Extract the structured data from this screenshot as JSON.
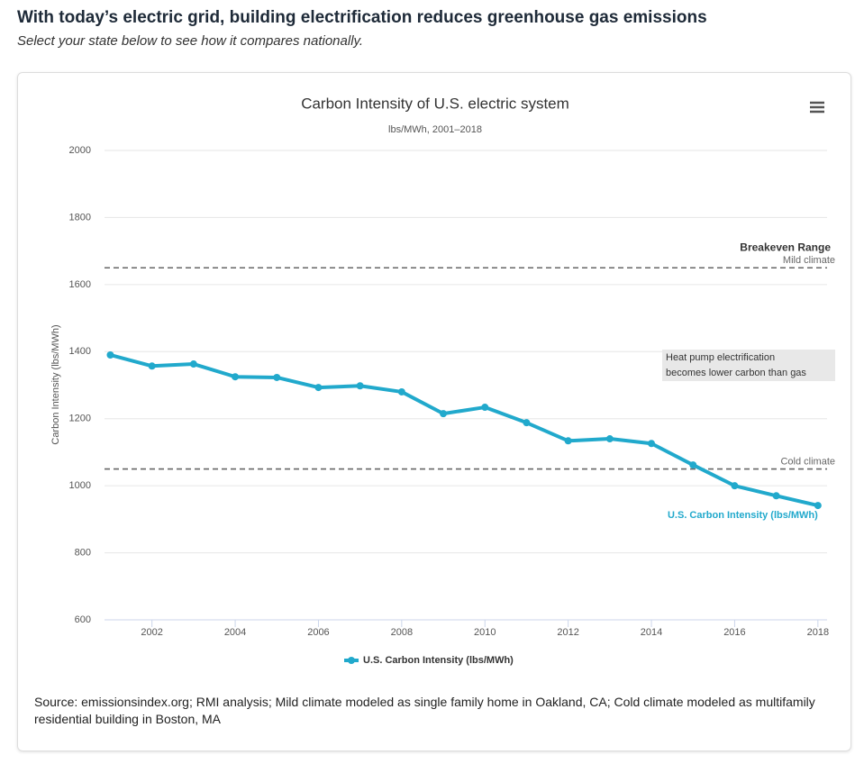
{
  "header": {
    "title": "With today’s electric grid, building electrification reduces greenhouse gas emissions",
    "subtitle": "Select your state below to see how it compares nationally."
  },
  "chart_data": {
    "type": "line",
    "title": "Carbon Intensity of U.S. electric system",
    "subtitle": "lbs/MWh, 2001–2018",
    "y_label": "Carbon Intensity (lbs/MWh)",
    "x": [
      2001,
      2002,
      2003,
      2004,
      2005,
      2006,
      2007,
      2008,
      2009,
      2010,
      2011,
      2012,
      2013,
      2014,
      2015,
      2016,
      2017,
      2018
    ],
    "xlim": [
      2000.86,
      2018.22
    ],
    "xticks": [
      2002,
      2004,
      2006,
      2008,
      2010,
      2012,
      2014,
      2016,
      2018
    ],
    "ylim": [
      600,
      2000
    ],
    "yticks": [
      600,
      800,
      1000,
      1200,
      1400,
      1600,
      1800,
      2000
    ],
    "grid": true,
    "series": [
      {
        "name": "U.S. Carbon Intensity (lbs/MWh)",
        "color": "#21a9cc",
        "values": [
          1390,
          1357,
          1363,
          1325,
          1323,
          1293,
          1298,
          1280,
          1215,
          1234,
          1188,
          1134,
          1140,
          1126,
          1062,
          1000,
          970,
          941
        ]
      }
    ],
    "reference_lines": [
      {
        "value": 1650,
        "label": "Mild climate"
      },
      {
        "value": 1050,
        "label": "Cold climate"
      }
    ],
    "reference_title": "Breakeven Range",
    "annotation": [
      "Heat pump electrification",
      "becomes lower carbon than gas"
    ],
    "legend": true
  },
  "footer": {
    "source": "Source: emissionsindex.org; RMI analysis; Mild climate modeled as single family home in Oakland, CA; Cold climate modeled as multifamily residential building in Boston, MA"
  }
}
